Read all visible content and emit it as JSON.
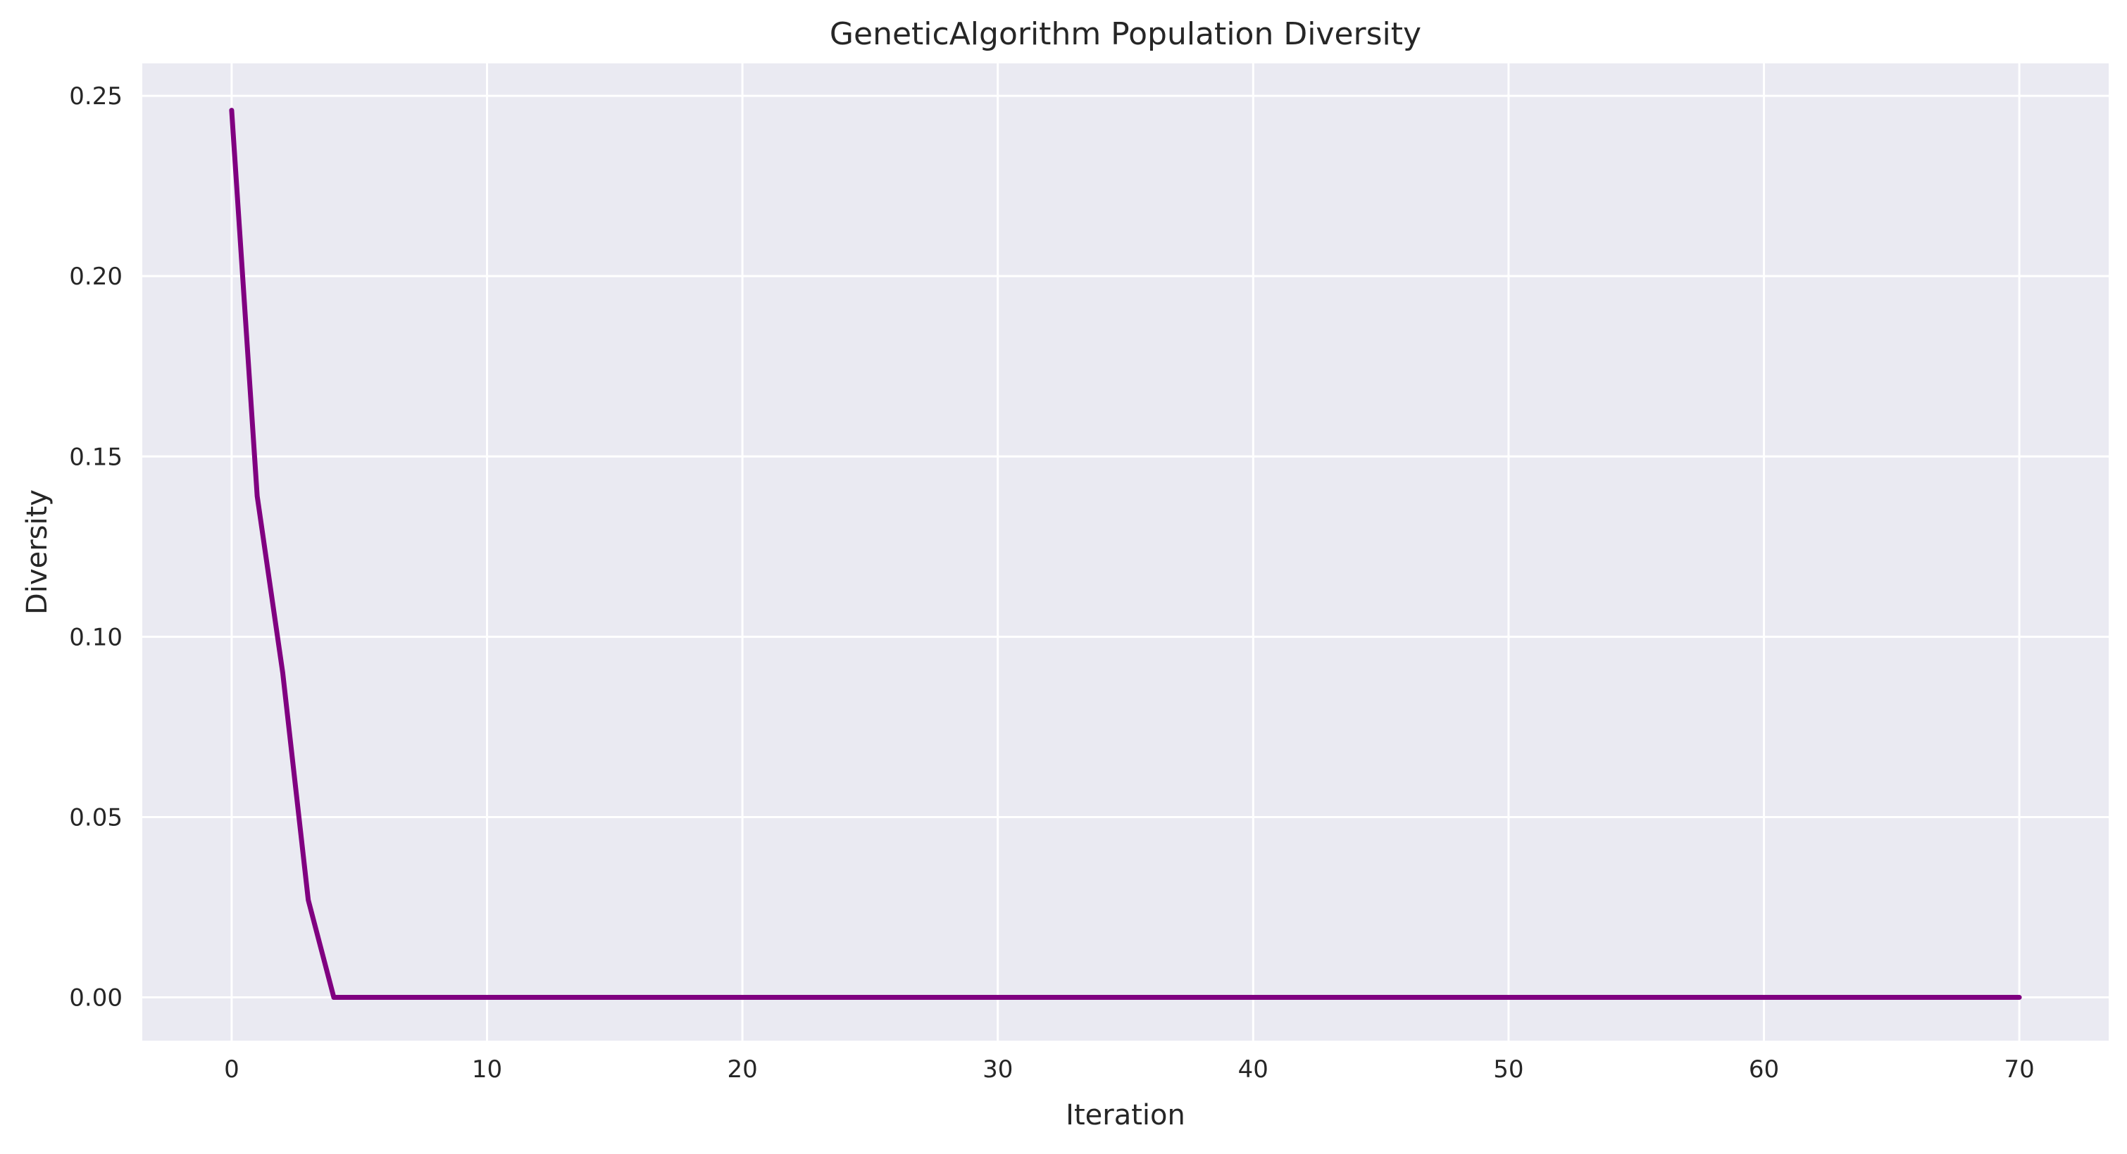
{
  "chart_data": {
    "type": "line",
    "title": "GeneticAlgorithm Population Diversity",
    "xlabel": "Iteration",
    "ylabel": "Diversity",
    "xlim": [
      -3.5,
      73.5
    ],
    "ylim": [
      -0.012,
      0.259
    ],
    "xticks": [
      0,
      10,
      20,
      30,
      40,
      50,
      60,
      70
    ],
    "xtick_labels": [
      "0",
      "10",
      "20",
      "30",
      "40",
      "50",
      "60",
      "70"
    ],
    "yticks": [
      0.0,
      0.05,
      0.1,
      0.15,
      0.2,
      0.25
    ],
    "ytick_labels": [
      "0.00",
      "0.05",
      "0.10",
      "0.15",
      "0.20",
      "0.25"
    ],
    "grid": true,
    "background": "#EAEAF2",
    "grid_color": "#FFFFFF",
    "series": [
      {
        "color": "#800080",
        "x": [
          0,
          1,
          2,
          3,
          4,
          5,
          6,
          7,
          8,
          9,
          10,
          11,
          12,
          13,
          14,
          15,
          16,
          17,
          18,
          19,
          20,
          21,
          22,
          23,
          24,
          25,
          26,
          27,
          28,
          29,
          30,
          31,
          32,
          33,
          34,
          35,
          36,
          37,
          38,
          39,
          40,
          41,
          42,
          43,
          44,
          45,
          46,
          47,
          48,
          49,
          50,
          51,
          52,
          53,
          54,
          55,
          56,
          57,
          58,
          59,
          60,
          61,
          62,
          63,
          64,
          65,
          66,
          67,
          68,
          69,
          70
        ],
        "values": [
          0.246,
          0.139,
          0.09,
          0.027,
          0.0,
          0.0,
          0.0,
          0.0,
          0.0,
          0.0,
          0.0,
          0.0,
          0.0,
          0.0,
          0.0,
          0.0,
          0.0,
          0.0,
          0.0,
          0.0,
          0.0,
          0.0,
          0.0,
          0.0,
          0.0,
          0.0,
          0.0,
          0.0,
          0.0,
          0.0,
          0.0,
          0.0,
          0.0,
          0.0,
          0.0,
          0.0,
          0.0,
          0.0,
          0.0,
          0.0,
          0.0,
          0.0,
          0.0,
          0.0,
          0.0,
          0.0,
          0.0,
          0.0,
          0.0,
          0.0,
          0.0,
          0.0,
          0.0,
          0.0,
          0.0,
          0.0,
          0.0,
          0.0,
          0.0,
          0.0,
          0.0,
          0.0,
          0.0,
          0.0,
          0.0,
          0.0,
          0.0,
          0.0,
          0.0,
          0.0,
          0.0
        ]
      }
    ]
  }
}
